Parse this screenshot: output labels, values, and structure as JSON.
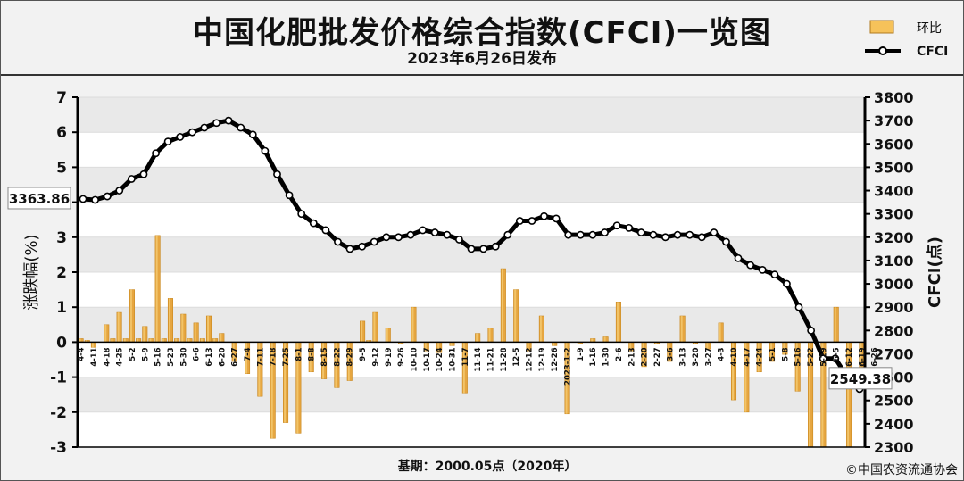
{
  "title": "中国化肥批发价格综合指数(CFCI)一览图",
  "subtitle": "2023年6月26日发布",
  "footer": {
    "base": "基期：2000.05点（2020年）",
    "copyright": "©中国农资流通协会"
  },
  "colors": {
    "bar": "#e6a640",
    "bar_light": "#f6d27a",
    "line": "#000000",
    "grid": "#dcdcdc"
  },
  "chart_data": {
    "type": "bar+line",
    "legend": [
      {
        "name": "环比",
        "kind": "bar"
      },
      {
        "name": "CFCI",
        "kind": "line"
      }
    ],
    "legend_position": "top-right",
    "ylabel_left": "涨跌幅(%)",
    "ylabel_right": "CFCI(点)",
    "ylim_left": [
      -3,
      7
    ],
    "ylim_right": [
      2300,
      3800
    ],
    "yticks_left": [
      "7",
      "6",
      "5",
      "4",
      "3",
      "2",
      "1",
      "0",
      "-1",
      "-2",
      "-3"
    ],
    "yticks_right": [
      "3800",
      "3700",
      "3600",
      "3500",
      "3400",
      "3300",
      "3200",
      "3100",
      "3000",
      "2900",
      "2800",
      "2700",
      "2600",
      "2500",
      "2400",
      "2300"
    ],
    "start_label": "3363.86",
    "end_label": "2549.38",
    "grid": true,
    "categories": [
      "4-4",
      "",
      "4-11",
      "",
      "4-18",
      "",
      "4-25",
      "",
      "5-2",
      "",
      "5-9",
      "",
      "5-16",
      "",
      "5-23",
      "",
      "5-30",
      "",
      "6-6",
      "",
      "6-13",
      "",
      "6-20",
      "",
      "6-27",
      "",
      "7-4",
      "",
      "7-11",
      "",
      "7-18",
      "",
      "7-25",
      "",
      "8-1",
      "",
      "8-8",
      "",
      "8-15",
      "",
      "8-22",
      "",
      "8-29",
      "",
      "9-5",
      "",
      "9-12",
      "",
      "9-19",
      "",
      "9-26",
      "",
      "10-10",
      "",
      "10-17",
      "",
      "10-24",
      "",
      "10-31",
      "",
      "11-7",
      "",
      "11-14",
      "",
      "11-21",
      "",
      "11-28",
      "",
      "12-5",
      "",
      "12-12",
      "",
      "12-19",
      "",
      "12-26",
      "",
      "2023-1-2",
      "",
      "1-9",
      "",
      "1-16",
      "",
      "1-30",
      "",
      "2-6",
      "",
      "2-13",
      "",
      "2-20",
      "",
      "2-27",
      "",
      "3-6",
      "",
      "3-13",
      "",
      "3-20",
      "",
      "3-27",
      "",
      "4-3",
      "",
      "4-10",
      "",
      "4-17",
      "",
      "4-24",
      "",
      "5-1",
      "",
      "5-8",
      "",
      "5-16",
      "",
      "5-22",
      "",
      "5-29",
      "",
      "6-5",
      "",
      "6-12",
      "",
      "6-19",
      "",
      "6-26"
    ],
    "bars": [
      0.1,
      0.05,
      -0.15,
      0.0,
      0.5,
      0.1,
      0.85,
      0.1,
      1.5,
      0.1,
      0.45,
      0.1,
      3.05,
      0.1,
      1.25,
      0.1,
      0.8,
      0.1,
      0.55,
      0.1,
      0.75,
      0.1,
      0.25,
      0.0,
      -0.55,
      0.0,
      -0.9,
      0.0,
      -1.55,
      0.0,
      -2.75,
      0.0,
      -2.3,
      0.0,
      -2.6,
      0.0,
      -0.85,
      0.0,
      -1.05,
      0.0,
      -1.3,
      0.0,
      -1.1,
      0.0,
      0.6,
      0.05,
      0.85,
      0.0,
      0.4,
      0.0,
      -0.05,
      0.0,
      1.0,
      0.0,
      -0.25,
      0.0,
      -0.3,
      0.0,
      -0.1,
      0.0,
      -1.45,
      0.0,
      0.25,
      0.0,
      0.4,
      0.0,
      2.1,
      0.0,
      1.5,
      0.0,
      -0.25,
      0.0,
      0.75,
      0.0,
      -0.1,
      0.0,
      -2.05,
      0.0,
      -0.05,
      0.0,
      0.1,
      0.0,
      0.15,
      0.0,
      1.15,
      0.0,
      -0.25,
      0.0,
      -0.7,
      0.0,
      -0.05,
      0.0,
      -0.55,
      0.0,
      0.75,
      0.0,
      -0.05,
      0.0,
      -0.2,
      0.0,
      0.55,
      0.0,
      -1.65,
      0.0,
      -2.0,
      0.0,
      -0.85,
      0.0,
      -0.55,
      0.0,
      -0.35,
      0.0,
      -1.4,
      0.0,
      -3.0,
      0.0,
      -3.0,
      0.0,
      1.0,
      0.0,
      -3.0,
      0.0,
      -1.3
    ],
    "line": [
      3363.86,
      3360,
      3375,
      3400,
      3450,
      3470,
      3560,
      3610,
      3630,
      3650,
      3670,
      3690,
      3700,
      3670,
      3640,
      3570,
      3470,
      3380,
      3300,
      3260,
      3230,
      3180,
      3150,
      3160,
      3180,
      3200,
      3200,
      3210,
      3230,
      3220,
      3210,
      3190,
      3150,
      3150,
      3160,
      3210,
      3270,
      3270,
      3290,
      3280,
      3210,
      3210,
      3210,
      3220,
      3250,
      3240,
      3220,
      3210,
      3200,
      3210,
      3210,
      3200,
      3220,
      3180,
      3110,
      3080,
      3060,
      3040,
      3000,
      2900,
      2800,
      2680,
      2680,
      2600,
      2549.38
    ]
  }
}
